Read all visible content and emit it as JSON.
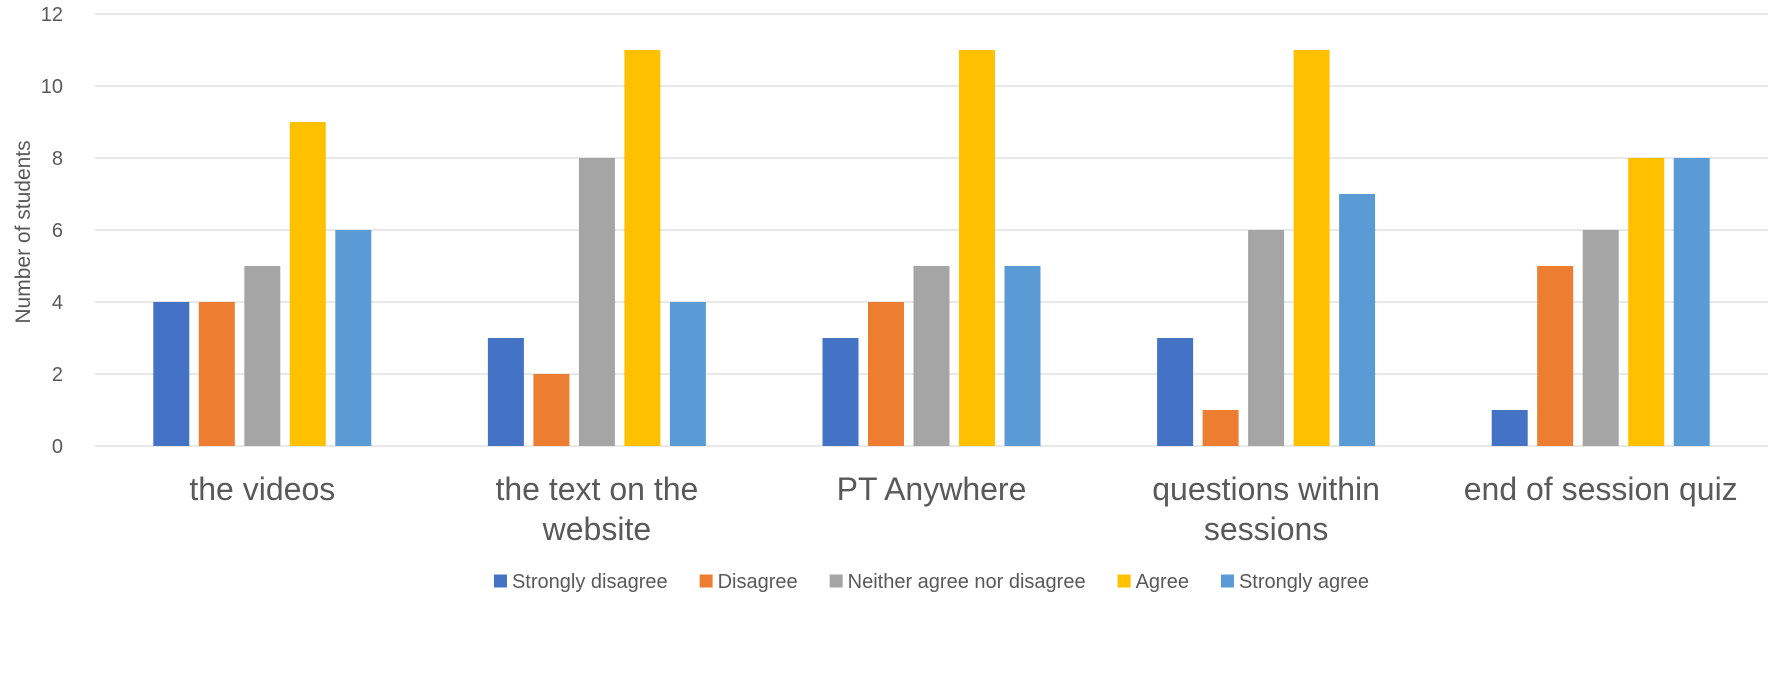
{
  "chart_data": {
    "type": "bar",
    "title": "",
    "xlabel": "",
    "ylabel": "Number of students",
    "ylim": [
      0,
      12
    ],
    "yticks": [
      0,
      2,
      4,
      6,
      8,
      10,
      12
    ],
    "grid": true,
    "legend_position": "bottom",
    "categories": [
      [
        "the videos"
      ],
      [
        "the text on the",
        "website"
      ],
      [
        "PT Anywhere"
      ],
      [
        "questions within",
        "sessions"
      ],
      [
        "end of session quiz"
      ]
    ],
    "series": [
      {
        "name": "Strongly disagree",
        "color": "#4472C4",
        "values": [
          4,
          3,
          3,
          3,
          1
        ]
      },
      {
        "name": "Disagree",
        "color": "#ED7D31",
        "values": [
          4,
          2,
          4,
          1,
          5
        ]
      },
      {
        "name": "Neither agree nor disagree",
        "color": "#A5A5A5",
        "values": [
          5,
          8,
          5,
          6,
          6
        ]
      },
      {
        "name": "Agree",
        "color": "#FFC000",
        "values": [
          9,
          11,
          11,
          11,
          8
        ]
      },
      {
        "name": "Strongly agree",
        "color": "#5B9BD5",
        "values": [
          6,
          4,
          5,
          7,
          8
        ]
      }
    ]
  }
}
